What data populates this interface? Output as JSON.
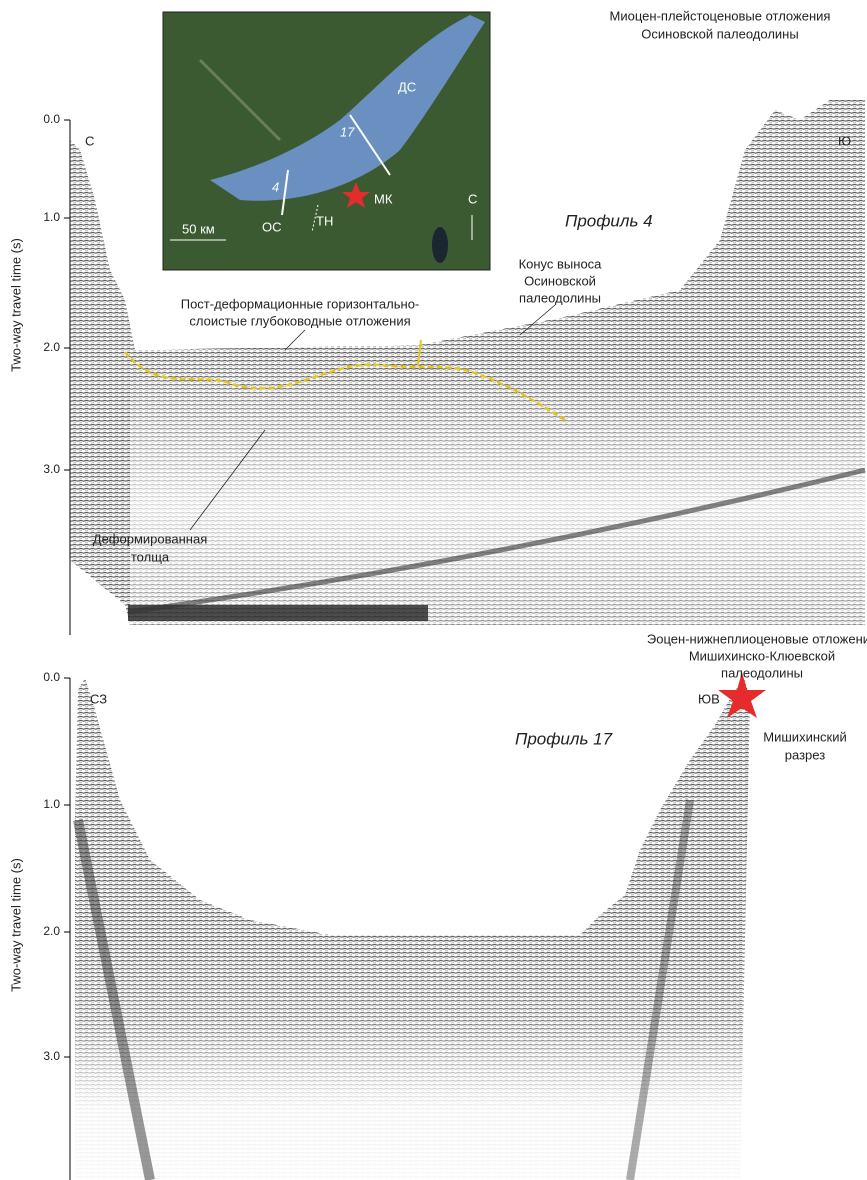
{
  "map": {
    "labels": {
      "ds": "ДС",
      "p17": "17",
      "p4": "4",
      "mk": "МК",
      "os": "ОС",
      "tn": "ТН",
      "north": "С",
      "scale": "50 км"
    }
  },
  "panels": [
    {
      "yticks": [
        "0.0",
        "1.0",
        "2.0",
        "3.0"
      ],
      "ylabel": "Two-way travel time (s)",
      "left_end": "С",
      "right_end": "Ю",
      "profile": "Профиль 4",
      "notes": {
        "top_right": [
          "Миоцен-плейстоценовые отложения",
          "Осиновской палеодолины"
        ],
        "fan": [
          "Конус выноса",
          "Осиновской",
          "палеодолины"
        ],
        "post": [
          "Пост-деформационные горизонтально-",
          "слоистые глубоководные отложения"
        ],
        "deformed": [
          "Деформированная",
          "толща"
        ]
      }
    },
    {
      "yticks": [
        "0.0",
        "1.0",
        "2.0",
        "3.0"
      ],
      "ylabel": "Two-way travel time (s)",
      "left_end": "СЗ",
      "right_end": "ЮВ",
      "profile": "Профиль 17",
      "notes": {
        "top_right": [
          "Эоцен-нижнеплиоценовые отложения",
          "Мишихинско-Клюевской",
          "палеодолины"
        ],
        "section": [
          "Мишихинский",
          "разрез"
        ]
      }
    }
  ]
}
